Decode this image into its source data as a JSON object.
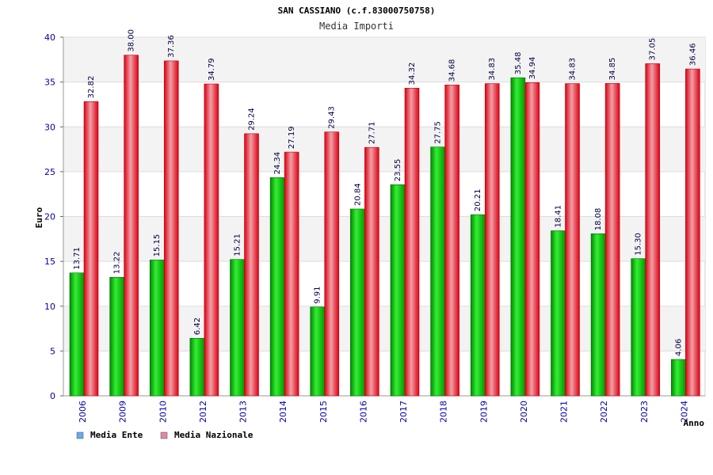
{
  "chart_data": {
    "type": "bar",
    "title": "SAN CASSIANO (c.f.83000750758)",
    "subtitle": "Media Importi",
    "xlabel": "Anno",
    "ylabel": "Euro",
    "ylim": [
      0,
      40
    ],
    "yticks": [
      0,
      5,
      10,
      15,
      20,
      25,
      30,
      35,
      40
    ],
    "grid": true,
    "legend_position": "bottom-left",
    "categories": [
      "2006",
      "2009",
      "2010",
      "2012",
      "2013",
      "2014",
      "2015",
      "2016",
      "2017",
      "2018",
      "2019",
      "2020",
      "2021",
      "2022",
      "2023",
      "2024"
    ],
    "series": [
      {
        "name": "Media Ente",
        "color": "#00bb00",
        "legend_color": "#66aaee",
        "values": [
          13.71,
          13.22,
          15.15,
          6.42,
          15.21,
          24.34,
          9.91,
          20.84,
          23.55,
          27.75,
          20.21,
          35.48,
          18.41,
          18.08,
          15.3,
          4.06
        ],
        "labels": [
          "13.71",
          "13.22",
          "15.15",
          "6.42",
          "15.21",
          "24.34",
          "9.91",
          "20.84",
          "23.55",
          "27.75",
          "20.21",
          "35.48",
          "18.41",
          "18.08",
          "15.30",
          "4.06"
        ]
      },
      {
        "name": "Media Nazionale",
        "color": "#ee1122",
        "legend_color": "#dd88aa",
        "values": [
          32.82,
          38.0,
          37.36,
          34.79,
          29.24,
          27.19,
          29.43,
          27.71,
          34.32,
          34.68,
          34.83,
          34.94,
          34.83,
          34.85,
          37.05,
          36.46
        ],
        "labels": [
          "32.82",
          "38.00",
          "37.36",
          "34.79",
          "29.24",
          "27.19",
          "29.43",
          "27.71",
          "34.32",
          "34.68",
          "34.83",
          "34.94",
          "34.83",
          "34.85",
          "37.05",
          "36.46"
        ]
      }
    ]
  }
}
